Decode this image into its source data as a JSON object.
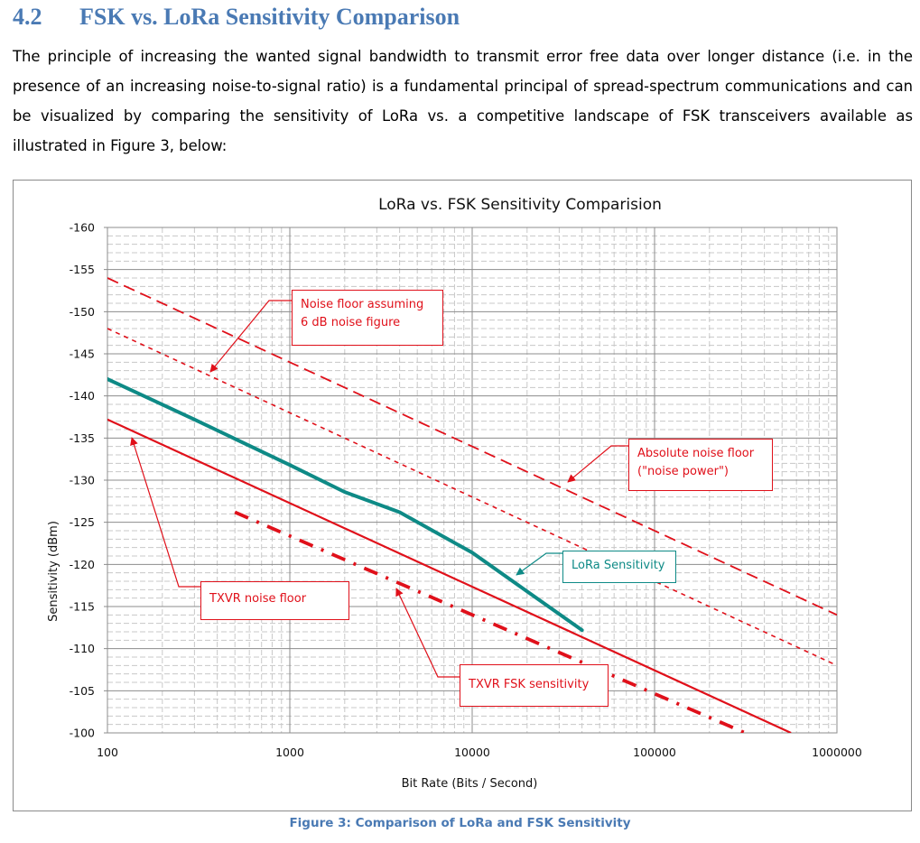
{
  "section": {
    "number": "4.2",
    "title": "FSK vs. LoRa Sensitivity Comparison",
    "paragraph": "The principle of increasing the wanted signal bandwidth to transmit error free data over longer distance (i.e. in the presence of an increasing noise-to-signal ratio) is a fundamental principal of spread-spectrum communications and can be visualized by comparing the sensitivity of LoRa vs. a competitive landscape of FSK transceivers available as illustrated in Figure 3, below:"
  },
  "caption": "Figure 3: Comparison of LoRa and FSK Sensitivity",
  "colors": {
    "heading": "#4a7ab4",
    "red": "#e0101a",
    "teal": "#0e8a86",
    "grid": "#c8c8c8"
  },
  "callouts": {
    "noise_floor_6db_line1": "Noise floor assuming",
    "noise_floor_6db_line2": "6 dB noise figure",
    "absolute_noise_line1": "Absolute noise floor",
    "absolute_noise_line2": "(\"noise power\")",
    "lora_sensitivity": "LoRa Sensitivity",
    "txvr_noise_floor": "TXVR noise floor",
    "txvr_fsk_sensitivity": "TXVR FSK sensitivity"
  },
  "chart_data": {
    "type": "line",
    "title": "LoRa vs. FSK Sensitivity Comparision",
    "xlabel": "Bit Rate (Bits / Second)",
    "ylabel": "Sensitivity (dBm)",
    "xscale": "log",
    "xlim": [
      100,
      1000000
    ],
    "ylim": [
      -160,
      -100
    ],
    "y_reversed": true,
    "x_tick_labels": [
      "100",
      "1000",
      "10000",
      "100000",
      "1000000"
    ],
    "x_tick_values": [
      100,
      1000,
      10000,
      100000,
      1000000
    ],
    "y_tick_labels": [
      "-160",
      "-155",
      "-150",
      "-145",
      "-140",
      "-135",
      "-130",
      "-125",
      "-120",
      "-115",
      "-110",
      "-105",
      "-100"
    ],
    "y_tick_values": [
      -160,
      -155,
      -150,
      -145,
      -140,
      -135,
      -130,
      -125,
      -120,
      -115,
      -110,
      -105,
      -100
    ],
    "grid": true,
    "series": [
      {
        "name": "Absolute noise floor (\"noise power\")",
        "style": "dashed",
        "color": "#e0101a",
        "x": [
          100,
          1000000
        ],
        "y": [
          -154,
          -114
        ]
      },
      {
        "name": "Noise floor assuming 6 dB noise figure",
        "style": "short-dash",
        "color": "#e0101a",
        "x": [
          100,
          1000000
        ],
        "y": [
          -148,
          -108
        ]
      },
      {
        "name": "LoRa Sensitivity",
        "style": "solid-thick",
        "color": "#0e8a86",
        "x": [
          100,
          300,
          1000,
          2000,
          4000,
          10000,
          20000,
          40000
        ],
        "y": [
          -142,
          -137.2,
          -131.8,
          -128.6,
          -126.2,
          -121.4,
          -116.8,
          -112.2
        ]
      },
      {
        "name": "TXVR noise floor",
        "style": "solid",
        "color": "#e0101a",
        "x": [
          100,
          560000
        ],
        "y": [
          -137.2,
          -100
        ]
      },
      {
        "name": "TXVR FSK sensitivity",
        "style": "dash-dot-thick",
        "color": "#e0101a",
        "x": [
          500,
          330000
        ],
        "y": [
          -126.2,
          -99.8
        ]
      }
    ]
  }
}
